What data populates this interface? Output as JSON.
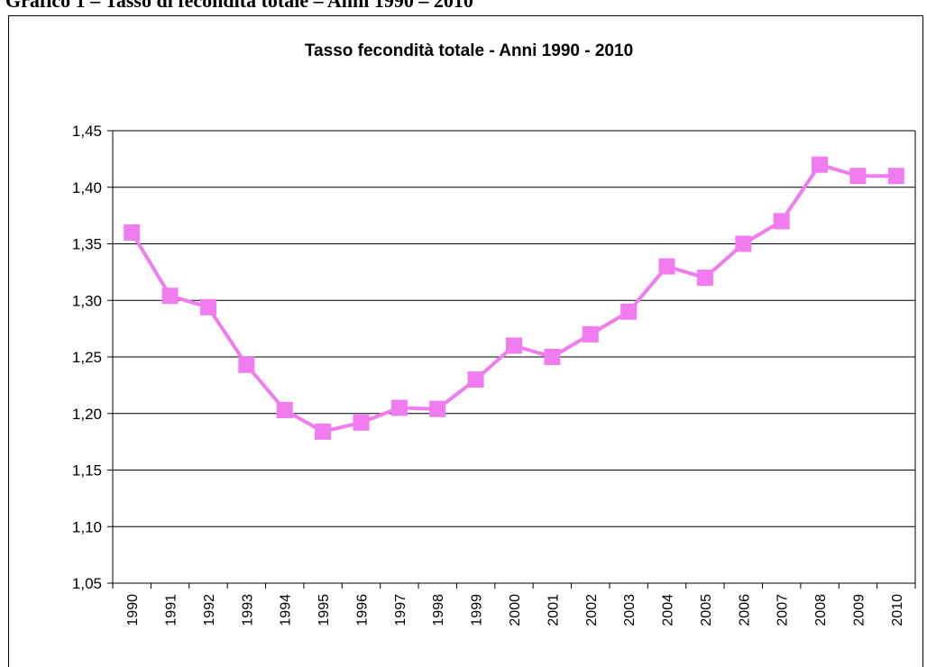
{
  "heading": "Grafico 1 – Tasso di fecondità totale – Anni 1990 – 2010",
  "chart_data": {
    "type": "line",
    "title": "Tasso fecondità totale - Anni 1990 - 2010",
    "categories": [
      "1990",
      "1991",
      "1992",
      "1993",
      "1994",
      "1995",
      "1996",
      "1997",
      "1998",
      "1999",
      "2000",
      "2001",
      "2002",
      "2003",
      "2004",
      "2005",
      "2006",
      "2007",
      "2008",
      "2009",
      "2010"
    ],
    "series": [
      {
        "name": "Tasso fecondità totale",
        "color": "#f07cf0",
        "values": [
          1.36,
          1.304,
          1.294,
          1.243,
          1.203,
          1.184,
          1.192,
          1.205,
          1.204,
          1.23,
          1.26,
          1.25,
          1.27,
          1.29,
          1.33,
          1.32,
          1.35,
          1.37,
          1.42,
          1.41,
          1.41
        ]
      }
    ],
    "ylim": [
      1.05,
      1.45
    ],
    "yticks": [
      {
        "value": 1.05,
        "label": "1,05"
      },
      {
        "value": 1.1,
        "label": "1,10"
      },
      {
        "value": 1.15,
        "label": "1,15"
      },
      {
        "value": 1.2,
        "label": "1,20"
      },
      {
        "value": 1.25,
        "label": "1,25"
      },
      {
        "value": 1.3,
        "label": "1,30"
      },
      {
        "value": 1.35,
        "label": "1,35"
      },
      {
        "value": 1.4,
        "label": "1,40"
      },
      {
        "value": 1.45,
        "label": "1,45"
      }
    ],
    "grid": true
  }
}
